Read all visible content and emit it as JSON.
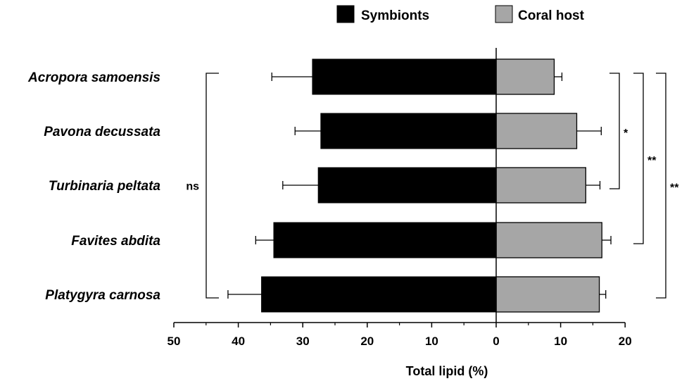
{
  "chart_data": {
    "type": "bar",
    "orientation": "horizontal-diverging",
    "categories": [
      "Acropora samoensis",
      "Pavona decussata",
      "Turbinaria peltata",
      "Favites abdita",
      "Platygyra carnosa"
    ],
    "series": [
      {
        "name": "Symbionts",
        "side": "left",
        "color": "#000000",
        "values": [
          28.5,
          27.2,
          27.6,
          34.5,
          36.4
        ],
        "errors": [
          6.3,
          4.0,
          5.5,
          2.8,
          5.2
        ]
      },
      {
        "name": "Coral host",
        "side": "right",
        "color": "#a6a6a6",
        "values": [
          9.0,
          12.5,
          13.9,
          16.4,
          16.0
        ],
        "errors": [
          1.2,
          3.8,
          2.2,
          1.4,
          1.0
        ]
      }
    ],
    "xlabel": "Total lipid (%)",
    "xlim_left": [
      0,
      50
    ],
    "xlim_right": [
      0,
      20
    ],
    "xticks_left": [
      "50",
      "40",
      "30",
      "20",
      "10",
      "0"
    ],
    "xticks_right": [
      "10",
      "20"
    ],
    "grid": false,
    "legend_position": "top",
    "significance": [
      {
        "label": "ns",
        "side": "left",
        "from": "Acropora samoensis",
        "to": "Platygyra carnosa"
      },
      {
        "label": "*",
        "side": "right",
        "from": "Acropora samoensis",
        "to": "Turbinaria peltata"
      },
      {
        "label": "**",
        "side": "right",
        "from": "Acropora samoensis",
        "to": "Favites abdita"
      },
      {
        "label": "**",
        "side": "right",
        "from": "Acropora samoensis",
        "to": "Platygyra carnosa"
      }
    ]
  }
}
